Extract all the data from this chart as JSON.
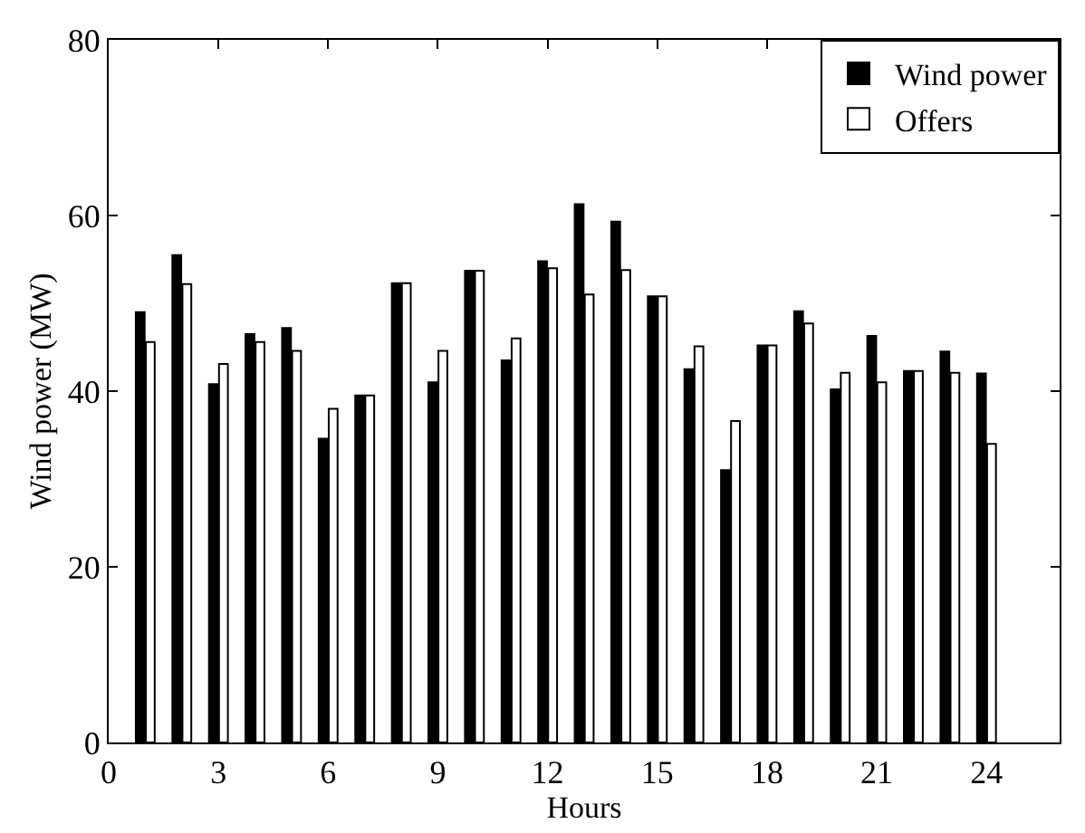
{
  "chart_data": {
    "type": "bar",
    "xlabel": "Hours",
    "ylabel": "Wind power (MW)",
    "x": [
      1,
      2,
      3,
      4,
      5,
      6,
      7,
      8,
      9,
      10,
      11,
      12,
      13,
      14,
      15,
      16,
      17,
      18,
      19,
      20,
      21,
      22,
      23,
      24
    ],
    "series": [
      {
        "name": "Wind power",
        "color": "#000000",
        "values": [
          49,
          55.5,
          40.8,
          46.5,
          47.2,
          34.6,
          39.5,
          52.3,
          41,
          53.7,
          43.5,
          54.8,
          61.3,
          59.3,
          50.8,
          42.5,
          31,
          45.2,
          49.1,
          40.2,
          46.3,
          42.3,
          44.5,
          42
        ]
      },
      {
        "name": "Offers",
        "color": "#ffffff",
        "values": [
          45.6,
          52.2,
          43.1,
          45.6,
          44.6,
          38,
          39.5,
          52.3,
          44.6,
          53.7,
          46,
          54,
          51,
          53.8,
          50.8,
          45.1,
          36.6,
          45.2,
          47.7,
          42.1,
          41,
          42.3,
          42.1,
          34
        ]
      }
    ],
    "xlim": [
      0,
      26
    ],
    "xticks": [
      0,
      3,
      6,
      9,
      12,
      15,
      18,
      21,
      24
    ],
    "ylim": [
      0,
      80
    ],
    "yticks": [
      0,
      20,
      40,
      60,
      80
    ],
    "legend": "top right"
  }
}
